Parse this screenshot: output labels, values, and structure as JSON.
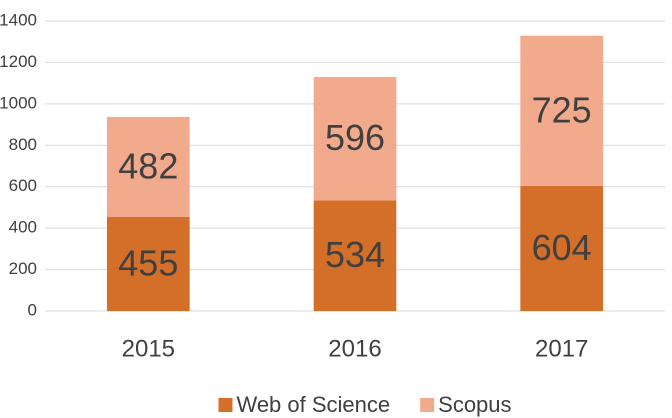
{
  "chart_data": {
    "type": "stacked_bar",
    "categories": [
      "2015",
      "2016",
      "2017"
    ],
    "series": [
      {
        "name": "Web of Science",
        "color": "#d46f2a",
        "values": [
          455,
          534,
          604
        ]
      },
      {
        "name": "Scopus",
        "color": "#f2aa8c",
        "values": [
          482,
          596,
          725
        ]
      }
    ],
    "ylim": [
      0,
      1400
    ],
    "yticks": [
      0,
      200,
      400,
      600,
      800,
      1000,
      1200,
      1400
    ],
    "grid": true,
    "legend": "bottom"
  }
}
